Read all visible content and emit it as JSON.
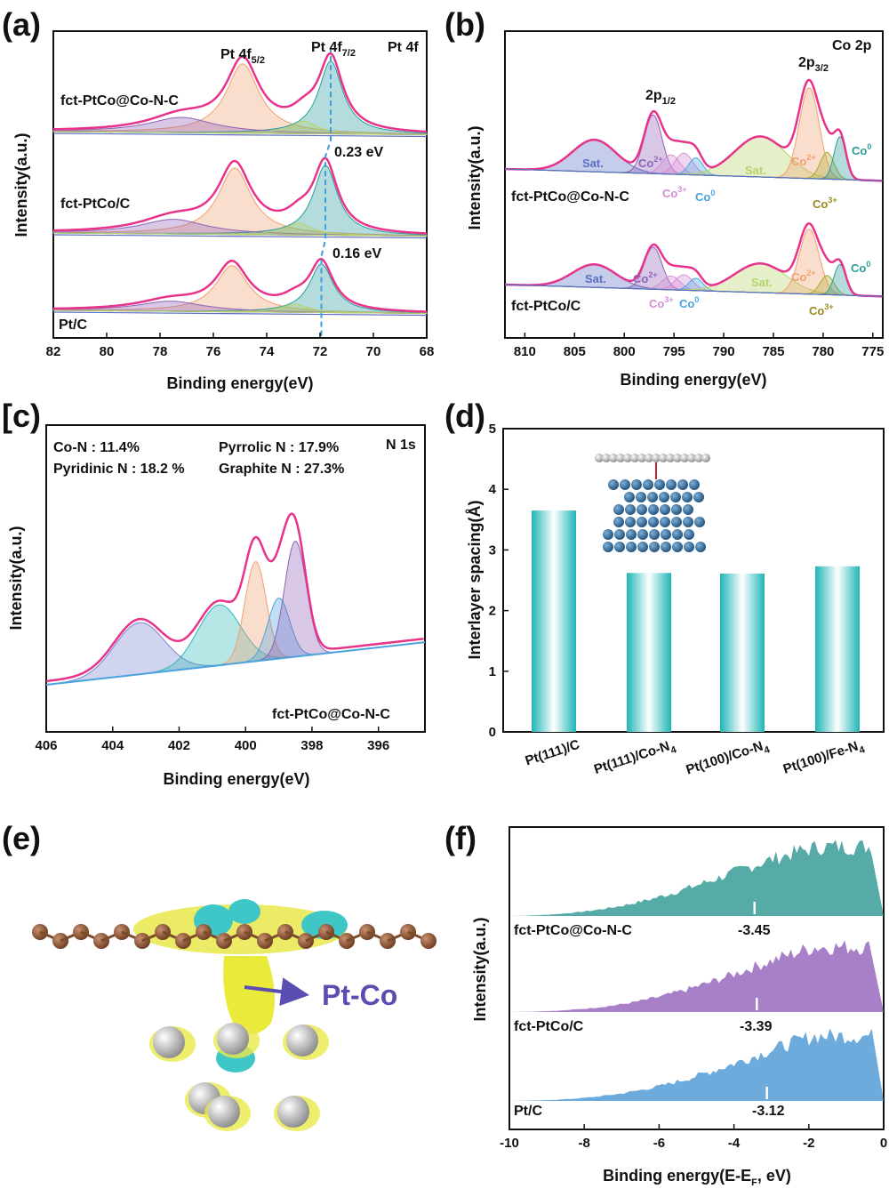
{
  "panels": {
    "a": {
      "label": "(a)"
    },
    "b": {
      "label": "(b)"
    },
    "c": {
      "label": "[c)"
    },
    "d": {
      "label": "(d)"
    },
    "e": {
      "label": "(e)",
      "arrow_label": "Pt-Co"
    },
    "f": {
      "label": "(f)"
    }
  },
  "colors": {
    "envelope": "#e8338a",
    "baseline": "#5b6fc4",
    "teal": "#2a9c9c",
    "purple": "#8e62b8",
    "orange": "#f0a070",
    "blue": "#4aa3df",
    "green": "#b5d36a",
    "dashed": "#3a9ee0"
  },
  "chart_data": [
    {
      "panel": "a",
      "type": "line",
      "title": "Pt 4f",
      "xlabel": "Binding energy(eV)",
      "ylabel": "Intensity(a.u.)",
      "xlim": [
        82,
        68
      ],
      "x_reversed": true,
      "xticks": [
        "82",
        "80",
        "78",
        "76",
        "74",
        "72",
        "70",
        "68"
      ],
      "peak_labels": {
        "pt4f52": "Pt 4f",
        "pt4f52_sub": "5/2",
        "pt4f72": "Pt 4f",
        "pt4f72_sub": "7/2"
      },
      "shift_labels": [
        "0.23 eV",
        "0.16 eV"
      ],
      "series": [
        {
          "name": "fct-PtCo@Co-N-C",
          "pt4f72_position": 71.6,
          "pt4f52_position": 74.9
        },
        {
          "name": "fct-PtCo/C",
          "pt4f72_position": 71.8,
          "pt4f52_position": 75.2
        },
        {
          "name": "Pt/C",
          "pt4f72_position": 71.95,
          "pt4f52_position": 75.3
        }
      ]
    },
    {
      "panel": "b",
      "type": "line",
      "title": "Co 2p",
      "xlabel": "Binding energy(eV)",
      "ylabel": "Intensity(a.u.)",
      "xlim": [
        812,
        774
      ],
      "x_reversed": true,
      "xticks": [
        "810",
        "805",
        "800",
        "795",
        "790",
        "785",
        "780",
        "775"
      ],
      "peak_labels": {
        "p12": "2p",
        "p12_sub": "1/2",
        "p32": "2p",
        "p32_sub": "3/2"
      },
      "component_labels": {
        "sat": "Sat.",
        "co2": "Co",
        "co2_sup": "2+",
        "co3": "Co",
        "co3_sup": "3+",
        "co0": "Co",
        "co0_sup": "0"
      },
      "series": [
        {
          "name": "fct-PtCo@Co-N-C"
        },
        {
          "name": "fct-PtCo/C"
        }
      ]
    },
    {
      "panel": "c",
      "type": "line",
      "title": "N 1s",
      "xlabel": "Binding energy(eV)",
      "ylabel": "Intensity(a.u.)",
      "xlim": [
        406,
        394.6
      ],
      "x_reversed": true,
      "xticks": [
        "406",
        "404",
        "402",
        "400",
        "398",
        "396"
      ],
      "sample": "fct-PtCo@Co-N-C",
      "legend": [
        {
          "name": "Co-N : 11.4%",
          "color": "#4aa3df"
        },
        {
          "name": "Pyrrolic N : 17.9%",
          "color": "#f0a070"
        },
        {
          "name": "Pyridinic N : 18.2 %",
          "color": "#8e62b8"
        },
        {
          "name": "Graphite N : 27.3%",
          "color": "#2fb6b6"
        }
      ],
      "components": [
        {
          "name": "Co-N",
          "center": 399.0,
          "share": 11.4
        },
        {
          "name": "Pyrrolic N",
          "center": 399.7,
          "share": 17.9
        },
        {
          "name": "Pyridinic N",
          "center": 398.5,
          "share": 18.2
        },
        {
          "name": "Graphite N",
          "center": 400.8,
          "share": 27.3
        }
      ]
    },
    {
      "panel": "d",
      "type": "bar",
      "xlabel": "",
      "ylabel": "Interlayer spacing(Å)",
      "ylim": [
        0,
        5
      ],
      "yticks": [
        "0",
        "1",
        "2",
        "3",
        "4",
        "5"
      ],
      "categories": [
        "Pt(111)/C",
        "Pt(111)/Co-N",
        "Pt(100)/Co-N",
        "Pt(100)/Fe-N"
      ],
      "category_subscripts": [
        "",
        "4",
        "4",
        "4"
      ],
      "values": [
        3.65,
        2.62,
        2.61,
        2.73
      ]
    },
    {
      "panel": "f",
      "type": "area",
      "xlabel": "Binding energy(E-E",
      "xlabel_sub": "F",
      "xlabel_tail": ", eV)",
      "ylabel": "Intensity(a.u.)",
      "xlim": [
        -10,
        0
      ],
      "xticks": [
        "-10",
        "-8",
        "-6",
        "-4",
        "-2",
        "0"
      ],
      "series": [
        {
          "name": "fct-PtCo@Co-N-C",
          "d_band_center": -3.45,
          "d_band_label": "-3.45",
          "color": "#1f8f8a"
        },
        {
          "name": "fct-PtCo/C",
          "d_band_center": -3.39,
          "d_band_label": "-3.39",
          "color": "#8a55b5"
        },
        {
          "name": "Pt/C",
          "d_band_center": -3.12,
          "d_band_label": "-3.12",
          "color": "#3b8fd0"
        }
      ]
    }
  ]
}
